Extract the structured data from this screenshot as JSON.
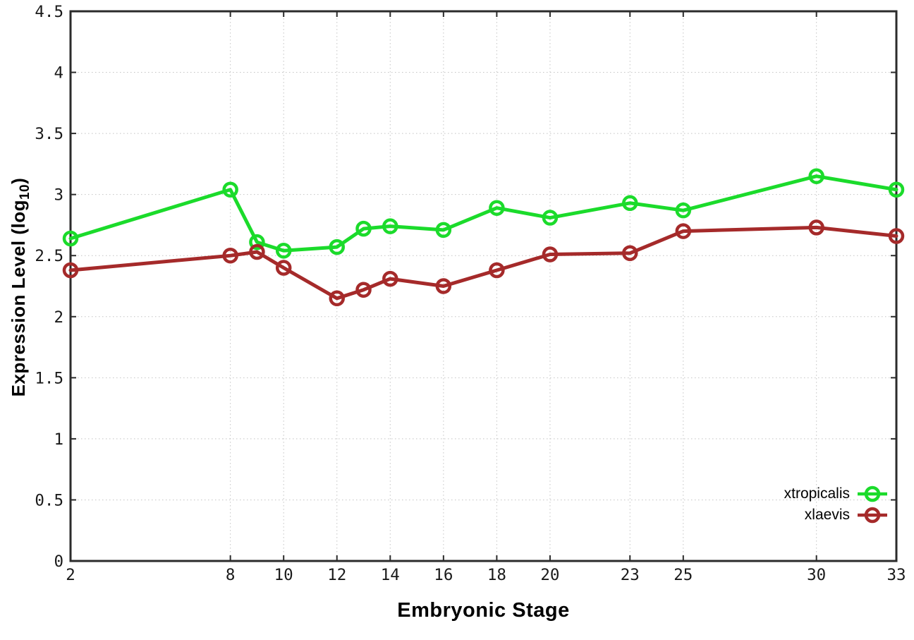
{
  "chart_data": {
    "type": "line",
    "title": "",
    "xlabel": "Embryonic Stage",
    "ylabel_main": "Expression Level (log",
    "ylabel_sub": "10",
    "ylabel_close": ")",
    "xlim": [
      2,
      33
    ],
    "ylim": [
      0,
      4.5
    ],
    "grid": true,
    "legend_position": "inside-bottom-right",
    "xtick_values": [
      2,
      8,
      10,
      12,
      14,
      16,
      18,
      20,
      23,
      25,
      30,
      33
    ],
    "xtick_labels": [
      "2",
      "8",
      "10",
      "12",
      "14",
      "16",
      "18",
      "20",
      "23",
      "25",
      "30",
      "33"
    ],
    "ytick_values": [
      0,
      0.5,
      1,
      1.5,
      2,
      2.5,
      3,
      3.5,
      4,
      4.5
    ],
    "ytick_labels": [
      "0",
      "0.5",
      "1",
      "1.5",
      "2",
      "2.5",
      "3",
      "3.5",
      "4",
      "4.5"
    ],
    "x": [
      2,
      8,
      9,
      10,
      12,
      13,
      14,
      16,
      18,
      20,
      23,
      25,
      30,
      33
    ],
    "series": [
      {
        "name": "xtropicalis",
        "color": "#1bdb2b",
        "values": [
          2.64,
          3.04,
          2.61,
          2.54,
          2.57,
          2.72,
          2.74,
          2.71,
          2.89,
          2.81,
          2.93,
          2.87,
          3.15,
          3.04
        ]
      },
      {
        "name": "xlaevis",
        "color": "#a52a2a",
        "values": [
          2.38,
          2.5,
          2.53,
          2.4,
          2.15,
          2.22,
          2.31,
          2.25,
          2.38,
          2.51,
          2.52,
          2.7,
          2.73,
          2.66
        ]
      }
    ],
    "colors": {
      "background": "#ffffff",
      "axis": "#2b2b2b",
      "grid": "#c4c4c4",
      "tick_text": "#1a1a1a"
    }
  }
}
